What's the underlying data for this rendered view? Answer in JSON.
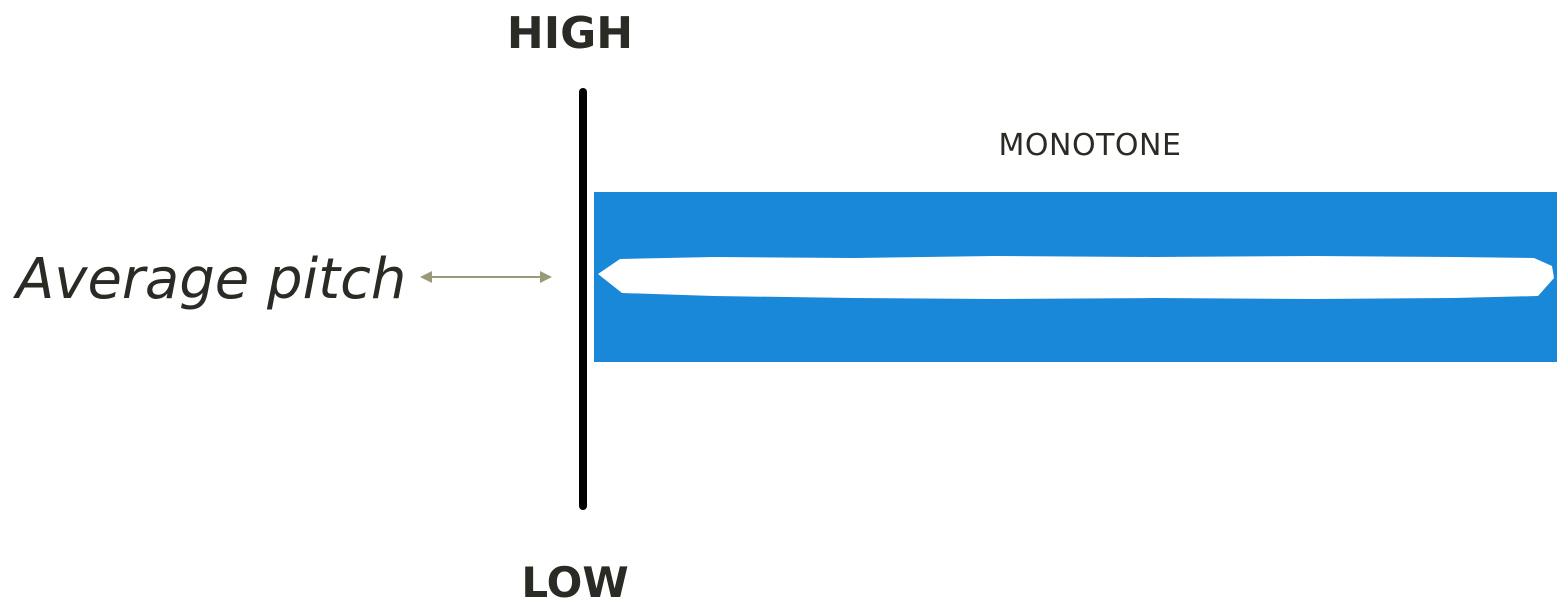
{
  "pitch_scale": {
    "high_label": "HIGH",
    "low_label": "LOW"
  },
  "average": {
    "label": "Average pitch"
  },
  "panel": {
    "title": "MONOTONE"
  },
  "colors": {
    "panel_background": "#1a88d9",
    "pitch_trace": "#ffffff",
    "arrow": "#9a9a7a",
    "axis": "#000000",
    "text": "#2b2b25"
  },
  "icons": {
    "arrow": "double-headed-arrow-icon"
  }
}
